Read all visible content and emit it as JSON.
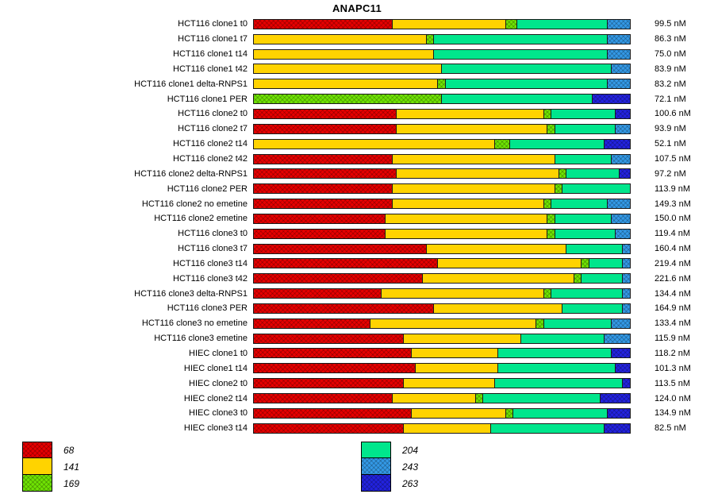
{
  "chart_data": {
    "type": "bar",
    "variant": "horizontal-stacked-percentage",
    "title": "ANAPC11",
    "value_unit": "nM",
    "legend_position": "bottom",
    "sizes": [
      "68",
      "141",
      "169",
      "204",
      "243",
      "263"
    ],
    "colors": {
      "68": "#E60000",
      "141": "#FFD300",
      "169": "#6FE303",
      "204": "#00E68C",
      "243": "#3399E6",
      "263": "#2222DF"
    },
    "hatched": [
      "68",
      "169",
      "243",
      "263"
    ],
    "legend_columns": [
      [
        "68",
        "141",
        "169"
      ],
      [
        "204",
        "243",
        "263"
      ]
    ],
    "rows": [
      {
        "label": "HCT116 clone1 t0",
        "value": "99.5 nM",
        "segments": [
          {
            "size": "68",
            "pct": 37
          },
          {
            "size": "141",
            "pct": 30
          },
          {
            "size": "169",
            "pct": 3
          },
          {
            "size": "204",
            "pct": 24
          },
          {
            "size": "243",
            "pct": 6
          }
        ]
      },
      {
        "label": "HCT116 clone1 t7",
        "value": "86.3 nM",
        "segments": [
          {
            "size": "141",
            "pct": 46
          },
          {
            "size": "169",
            "pct": 2
          },
          {
            "size": "204",
            "pct": 46
          },
          {
            "size": "243",
            "pct": 6
          }
        ]
      },
      {
        "label": "HCT116 clone1 t14",
        "value": "75.0 nM",
        "segments": [
          {
            "size": "141",
            "pct": 48
          },
          {
            "size": "204",
            "pct": 46
          },
          {
            "size": "243",
            "pct": 6
          }
        ]
      },
      {
        "label": "HCT116 clone1 t42",
        "value": "83.9 nM",
        "segments": [
          {
            "size": "141",
            "pct": 50
          },
          {
            "size": "204",
            "pct": 45
          },
          {
            "size": "243",
            "pct": 5
          }
        ]
      },
      {
        "label": "HCT116 clone1 delta-RNPS1",
        "value": "83.2 nM",
        "segments": [
          {
            "size": "141",
            "pct": 49
          },
          {
            "size": "169",
            "pct": 2
          },
          {
            "size": "204",
            "pct": 43
          },
          {
            "size": "243",
            "pct": 6
          }
        ]
      },
      {
        "label": "HCT116 clone1 PER",
        "value": "72.1 nM",
        "segments": [
          {
            "size": "169",
            "pct": 50
          },
          {
            "size": "204",
            "pct": 40
          },
          {
            "size": "263",
            "pct": 10
          }
        ]
      },
      {
        "label": "HCT116 clone2 t0",
        "value": "100.6 nM",
        "segments": [
          {
            "size": "68",
            "pct": 38
          },
          {
            "size": "141",
            "pct": 39
          },
          {
            "size": "169",
            "pct": 2
          },
          {
            "size": "204",
            "pct": 17
          },
          {
            "size": "263",
            "pct": 4
          }
        ]
      },
      {
        "label": "HCT116 clone2 t7",
        "value": "93.9 nM",
        "segments": [
          {
            "size": "68",
            "pct": 38
          },
          {
            "size": "141",
            "pct": 40
          },
          {
            "size": "169",
            "pct": 2
          },
          {
            "size": "204",
            "pct": 16
          },
          {
            "size": "243",
            "pct": 4
          }
        ]
      },
      {
        "label": "HCT116 clone2 t14",
        "value": "52.1 nM",
        "segments": [
          {
            "size": "141",
            "pct": 64
          },
          {
            "size": "169",
            "pct": 4
          },
          {
            "size": "204",
            "pct": 25
          },
          {
            "size": "263",
            "pct": 7
          }
        ]
      },
      {
        "label": "HCT116 clone2 t42",
        "value": "107.5 nM",
        "segments": [
          {
            "size": "68",
            "pct": 37
          },
          {
            "size": "141",
            "pct": 43
          },
          {
            "size": "204",
            "pct": 15
          },
          {
            "size": "243",
            "pct": 5
          }
        ]
      },
      {
        "label": "HCT116 clone2 delta-RNPS1",
        "value": "97.2 nM",
        "segments": [
          {
            "size": "68",
            "pct": 38
          },
          {
            "size": "141",
            "pct": 43
          },
          {
            "size": "169",
            "pct": 2
          },
          {
            "size": "204",
            "pct": 14
          },
          {
            "size": "263",
            "pct": 3
          }
        ]
      },
      {
        "label": "HCT116 clone2 PER",
        "value": "113.9 nM",
        "segments": [
          {
            "size": "68",
            "pct": 37
          },
          {
            "size": "141",
            "pct": 43
          },
          {
            "size": "169",
            "pct": 2
          },
          {
            "size": "204",
            "pct": 18
          }
        ]
      },
      {
        "label": "HCT116 clone2 no emetine",
        "value": "149.3 nM",
        "segments": [
          {
            "size": "68",
            "pct": 37
          },
          {
            "size": "141",
            "pct": 40
          },
          {
            "size": "169",
            "pct": 2
          },
          {
            "size": "204",
            "pct": 15
          },
          {
            "size": "243",
            "pct": 6
          }
        ]
      },
      {
        "label": "HCT116 clone2 emetine",
        "value": "150.0 nM",
        "segments": [
          {
            "size": "68",
            "pct": 35
          },
          {
            "size": "141",
            "pct": 43
          },
          {
            "size": "169",
            "pct": 2
          },
          {
            "size": "204",
            "pct": 15
          },
          {
            "size": "243",
            "pct": 5
          }
        ]
      },
      {
        "label": "HCT116 clone3 t0",
        "value": "119.4 nM",
        "segments": [
          {
            "size": "68",
            "pct": 35
          },
          {
            "size": "141",
            "pct": 43
          },
          {
            "size": "169",
            "pct": 2
          },
          {
            "size": "204",
            "pct": 16
          },
          {
            "size": "243",
            "pct": 4
          }
        ]
      },
      {
        "label": "HCT116 clone3 t7",
        "value": "160.4 nM",
        "segments": [
          {
            "size": "68",
            "pct": 46
          },
          {
            "size": "141",
            "pct": 37
          },
          {
            "size": "204",
            "pct": 15
          },
          {
            "size": "243",
            "pct": 2
          }
        ]
      },
      {
        "label": "HCT116 clone3 t14",
        "value": "219.4 nM",
        "segments": [
          {
            "size": "68",
            "pct": 49
          },
          {
            "size": "141",
            "pct": 38
          },
          {
            "size": "169",
            "pct": 2
          },
          {
            "size": "204",
            "pct": 9
          },
          {
            "size": "243",
            "pct": 2
          }
        ]
      },
      {
        "label": "HCT116 clone3 t42",
        "value": "221.6 nM",
        "segments": [
          {
            "size": "68",
            "pct": 45
          },
          {
            "size": "141",
            "pct": 40
          },
          {
            "size": "169",
            "pct": 2
          },
          {
            "size": "204",
            "pct": 11
          },
          {
            "size": "243",
            "pct": 2
          }
        ]
      },
      {
        "label": "HCT116 clone3 delta-RNPS1",
        "value": "134.4 nM",
        "segments": [
          {
            "size": "68",
            "pct": 34
          },
          {
            "size": "141",
            "pct": 43
          },
          {
            "size": "169",
            "pct": 2
          },
          {
            "size": "204",
            "pct": 19
          },
          {
            "size": "243",
            "pct": 2
          }
        ]
      },
      {
        "label": "HCT116 clone3 PER",
        "value": "164.9 nM",
        "segments": [
          {
            "size": "68",
            "pct": 48
          },
          {
            "size": "141",
            "pct": 34
          },
          {
            "size": "204",
            "pct": 16
          },
          {
            "size": "243",
            "pct": 2
          }
        ]
      },
      {
        "label": "HCT116 clone3 no emetine",
        "value": "133.4 nM",
        "segments": [
          {
            "size": "68",
            "pct": 31
          },
          {
            "size": "141",
            "pct": 44
          },
          {
            "size": "169",
            "pct": 2
          },
          {
            "size": "204",
            "pct": 18
          },
          {
            "size": "243",
            "pct": 5
          }
        ]
      },
      {
        "label": "HCT116 clone3 emetine",
        "value": "115.9 nM",
        "segments": [
          {
            "size": "68",
            "pct": 40
          },
          {
            "size": "141",
            "pct": 31
          },
          {
            "size": "204",
            "pct": 22
          },
          {
            "size": "243",
            "pct": 7
          }
        ]
      },
      {
        "label": "HIEC clone1 t0",
        "value": "118.2 nM",
        "segments": [
          {
            "size": "68",
            "pct": 42
          },
          {
            "size": "141",
            "pct": 23
          },
          {
            "size": "204",
            "pct": 30
          },
          {
            "size": "263",
            "pct": 5
          }
        ]
      },
      {
        "label": "HIEC clone1 t14",
        "value": "101.3 nM",
        "segments": [
          {
            "size": "68",
            "pct": 43
          },
          {
            "size": "141",
            "pct": 22
          },
          {
            "size": "204",
            "pct": 31
          },
          {
            "size": "263",
            "pct": 4
          }
        ]
      },
      {
        "label": "HIEC clone2 t0",
        "value": "113.5 nM",
        "segments": [
          {
            "size": "68",
            "pct": 40
          },
          {
            "size": "141",
            "pct": 24
          },
          {
            "size": "204",
            "pct": 34
          },
          {
            "size": "263",
            "pct": 2
          }
        ]
      },
      {
        "label": "HIEC clone2 t14",
        "value": "124.0 nM",
        "segments": [
          {
            "size": "68",
            "pct": 37
          },
          {
            "size": "141",
            "pct": 22
          },
          {
            "size": "169",
            "pct": 2
          },
          {
            "size": "204",
            "pct": 31
          },
          {
            "size": "263",
            "pct": 8
          }
        ]
      },
      {
        "label": "HIEC clone3 t0",
        "value": "134.9 nM",
        "segments": [
          {
            "size": "68",
            "pct": 42
          },
          {
            "size": "141",
            "pct": 25
          },
          {
            "size": "169",
            "pct": 2
          },
          {
            "size": "204",
            "pct": 25
          },
          {
            "size": "263",
            "pct": 6
          }
        ]
      },
      {
        "label": "HIEC clone3 t14",
        "value": "82.5 nM",
        "segments": [
          {
            "size": "68",
            "pct": 40
          },
          {
            "size": "141",
            "pct": 23
          },
          {
            "size": "204",
            "pct": 30
          },
          {
            "size": "263",
            "pct": 7
          }
        ]
      }
    ]
  }
}
